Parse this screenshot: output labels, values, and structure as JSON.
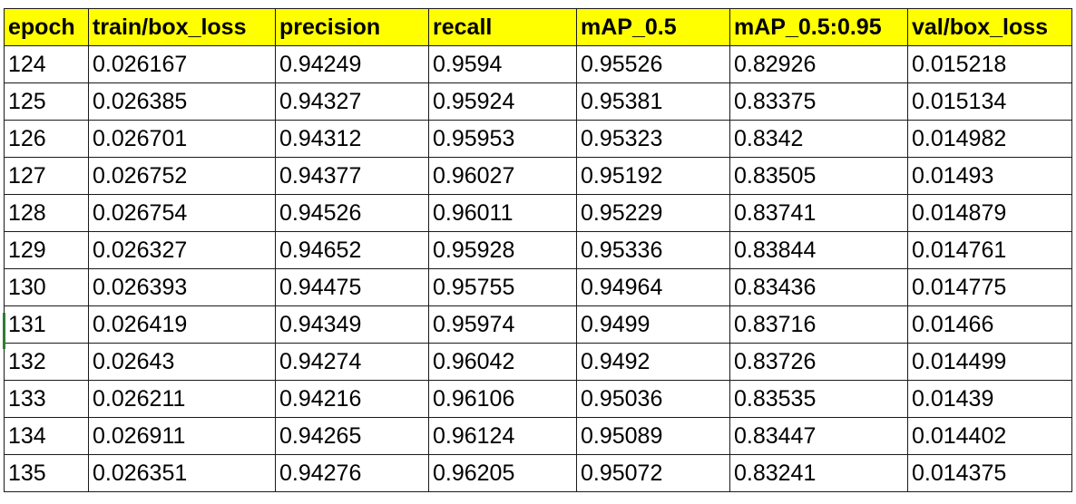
{
  "table": {
    "headers": [
      "epoch",
      "train/box_loss",
      "precision",
      "recall",
      "mAP_0.5",
      "mAP_0.5:0.95",
      "val/box_loss"
    ],
    "rows": [
      [
        "124",
        "0.026167",
        "0.94249",
        "0.9594",
        "0.95526",
        "0.82926",
        "0.015218"
      ],
      [
        "125",
        "0.026385",
        "0.94327",
        "0.95924",
        "0.95381",
        "0.83375",
        "0.015134"
      ],
      [
        "126",
        "0.026701",
        "0.94312",
        "0.95953",
        "0.95323",
        "0.8342",
        "0.014982"
      ],
      [
        "127",
        "0.026752",
        "0.94377",
        "0.96027",
        "0.95192",
        "0.83505",
        "0.01493"
      ],
      [
        "128",
        "0.026754",
        "0.94526",
        "0.96011",
        "0.95229",
        "0.83741",
        "0.014879"
      ],
      [
        "129",
        "0.026327",
        "0.94652",
        "0.95928",
        "0.95336",
        "0.83844",
        "0.014761"
      ],
      [
        "130",
        "0.026393",
        "0.94475",
        "0.95755",
        "0.94964",
        "0.83436",
        "0.014775"
      ],
      [
        "131",
        "0.026419",
        "0.94349",
        "0.95974",
        "0.9499",
        "0.83716",
        "0.01466"
      ],
      [
        "132",
        "0.02643",
        "0.94274",
        "0.96042",
        "0.9492",
        "0.83726",
        "0.014499"
      ],
      [
        "133",
        "0.026211",
        "0.94216",
        "0.96106",
        "0.95036",
        "0.83535",
        "0.01439"
      ],
      [
        "134",
        "0.026911",
        "0.94265",
        "0.96124",
        "0.95089",
        "0.83447",
        "0.014402"
      ],
      [
        "135",
        "0.026351",
        "0.94276",
        "0.96205",
        "0.95072",
        "0.83241",
        "0.014375"
      ]
    ]
  },
  "colors": {
    "header_fill": "#ffff00",
    "border": "#1a1a1a",
    "active_row_marker": "#2e7d32"
  }
}
